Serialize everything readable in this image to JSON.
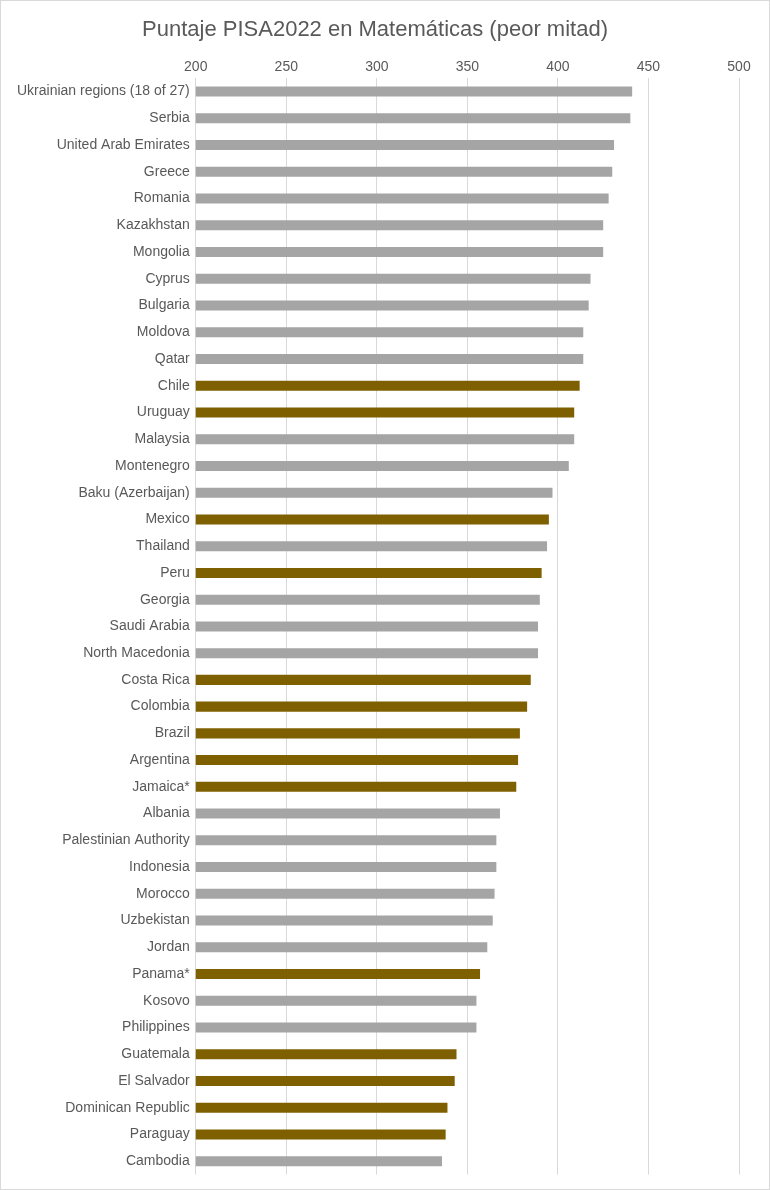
{
  "chart_data": {
    "type": "bar",
    "orientation": "horizontal",
    "title": "Puntaje PISA2022 en Matemáticas (peor mitad)",
    "categories": [
      "Ukrainian regions (18 of 27)",
      "Serbia",
      "United Arab Emirates",
      "Greece",
      "Romania",
      "Kazakhstan",
      "Mongolia",
      "Cyprus",
      "Bulgaria",
      "Moldova",
      "Qatar",
      "Chile",
      "Uruguay",
      "Malaysia",
      "Montenegro",
      "Baku (Azerbaijan)",
      "Mexico",
      "Thailand",
      "Peru",
      "Georgia",
      "Saudi Arabia",
      "North Macedonia",
      "Costa Rica",
      "Colombia",
      "Brazil",
      "Argentina",
      "Jamaica*",
      "Albania",
      "Palestinian Authority",
      "Indonesia",
      "Morocco",
      "Uzbekistan",
      "Jordan",
      "Panama*",
      "Kosovo",
      "Philippines",
      "Guatemala",
      "El Salvador",
      "Dominican Republic",
      "Paraguay",
      "Cambodia"
    ],
    "values": [
      441,
      440,
      431,
      430,
      428,
      425,
      425,
      418,
      417,
      414,
      414,
      412,
      409,
      409,
      406,
      397,
      395,
      394,
      391,
      390,
      389,
      389,
      385,
      383,
      379,
      378,
      377,
      368,
      366,
      366,
      365,
      364,
      361,
      357,
      355,
      355,
      344,
      343,
      339,
      338,
      336
    ],
    "colors": [
      "#a5a5a5",
      "#a5a5a5",
      "#a5a5a5",
      "#a5a5a5",
      "#a5a5a5",
      "#a5a5a5",
      "#a5a5a5",
      "#a5a5a5",
      "#a5a5a5",
      "#a5a5a5",
      "#a5a5a5",
      "#7f6000",
      "#7f6000",
      "#a5a5a5",
      "#a5a5a5",
      "#a5a5a5",
      "#7f6000",
      "#a5a5a5",
      "#7f6000",
      "#a5a5a5",
      "#a5a5a5",
      "#a5a5a5",
      "#7f6000",
      "#7f6000",
      "#7f6000",
      "#7f6000",
      "#7f6000",
      "#a5a5a5",
      "#a5a5a5",
      "#a5a5a5",
      "#a5a5a5",
      "#a5a5a5",
      "#a5a5a5",
      "#7f6000",
      "#a5a5a5",
      "#a5a5a5",
      "#7f6000",
      "#7f6000",
      "#7f6000",
      "#7f6000",
      "#a5a5a5"
    ],
    "xlim": [
      200,
      500
    ],
    "xticks": [
      200,
      250,
      300,
      350,
      400,
      450,
      500
    ],
    "grid": true
  }
}
